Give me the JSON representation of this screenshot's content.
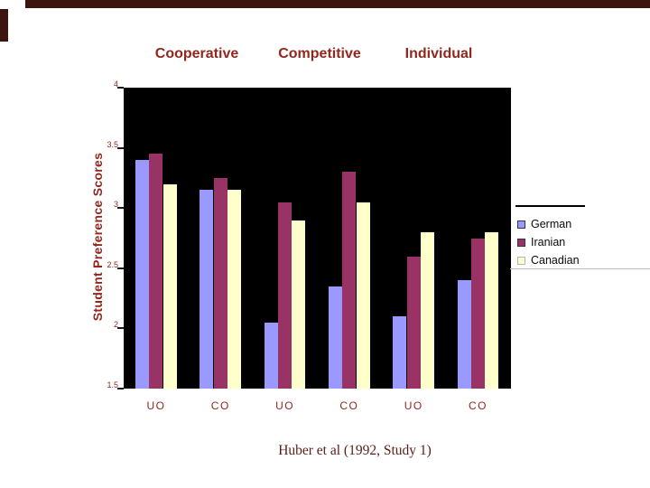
{
  "slide": {
    "caption": "Huber et al (1992, Study 1)"
  },
  "theme": {
    "accent_bar_color": "#3b150e",
    "heading_text_color": "#92271e",
    "caption_text_color": "#571e15",
    "plot_background": "#000000",
    "legend_text_color": "#0a0a0a"
  },
  "chart_data": {
    "type": "bar",
    "title": "",
    "group_headers": [
      "Cooperative",
      "Competitive",
      "Individual"
    ],
    "categories": [
      "UO",
      "CO",
      "UO",
      "CO",
      "UO",
      "CO"
    ],
    "series": [
      {
        "name": "German",
        "color": "#9999FF",
        "values": [
          3.4,
          3.15,
          2.05,
          2.35,
          2.1,
          2.4
        ]
      },
      {
        "name": "Iranian",
        "color": "#993366",
        "values": [
          3.45,
          3.25,
          3.05,
          3.3,
          2.6,
          2.75
        ]
      },
      {
        "name": "Canadian",
        "color": "#FFFFCC",
        "values": [
          3.2,
          3.15,
          2.9,
          3.05,
          2.8,
          2.8
        ]
      }
    ],
    "xlabel": "",
    "ylabel": "Student Preference Scores",
    "ylim": [
      1.5,
      4.0
    ],
    "yticks": [
      4,
      3.5,
      3,
      2.5,
      2,
      1.5
    ],
    "ytick_labels": [
      "4",
      "3.5",
      "3",
      "2.5",
      "2",
      "1.5"
    ],
    "grid": false,
    "legend_position": "right",
    "legend_entries": [
      "German",
      "Iranian",
      "Canadian"
    ]
  }
}
